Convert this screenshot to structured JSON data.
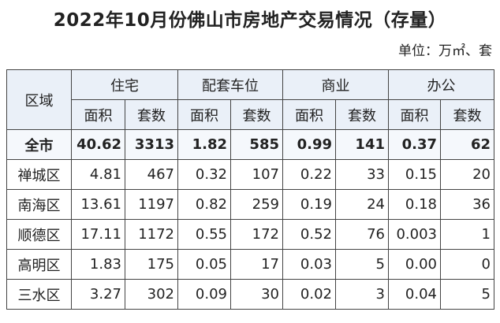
{
  "header": {
    "title": "2022年10月份佛山市房地产交易情况（存量）",
    "unit": "单位：万㎡、套"
  },
  "table": {
    "corner": "区域",
    "groups": [
      "住宅",
      "配套车位",
      "商业",
      "办公"
    ],
    "subheaders": [
      "面积",
      "套数",
      "面积",
      "套数",
      "面积",
      "套数",
      "面积",
      "套数"
    ],
    "rows": [
      [
        "全市",
        "40.62",
        "3313",
        "1.82",
        "585",
        "0.99",
        "141",
        "0.37",
        "62"
      ],
      [
        "禅城区",
        "4.81",
        "467",
        "0.32",
        "107",
        "0.22",
        "33",
        "0.15",
        "20"
      ],
      [
        "南海区",
        "13.61",
        "1197",
        "0.82",
        "259",
        "0.19",
        "24",
        "0.18",
        "36"
      ],
      [
        "顺德区",
        "17.11",
        "1172",
        "0.55",
        "172",
        "0.52",
        "76",
        "0.003",
        "1"
      ],
      [
        "高明区",
        "1.83",
        "175",
        "0.05",
        "17",
        "0.03",
        "5",
        "0.00",
        "0"
      ],
      [
        "三水区",
        "3.27",
        "302",
        "0.09",
        "30",
        "0.02",
        "3",
        "0.04",
        "5"
      ]
    ]
  }
}
